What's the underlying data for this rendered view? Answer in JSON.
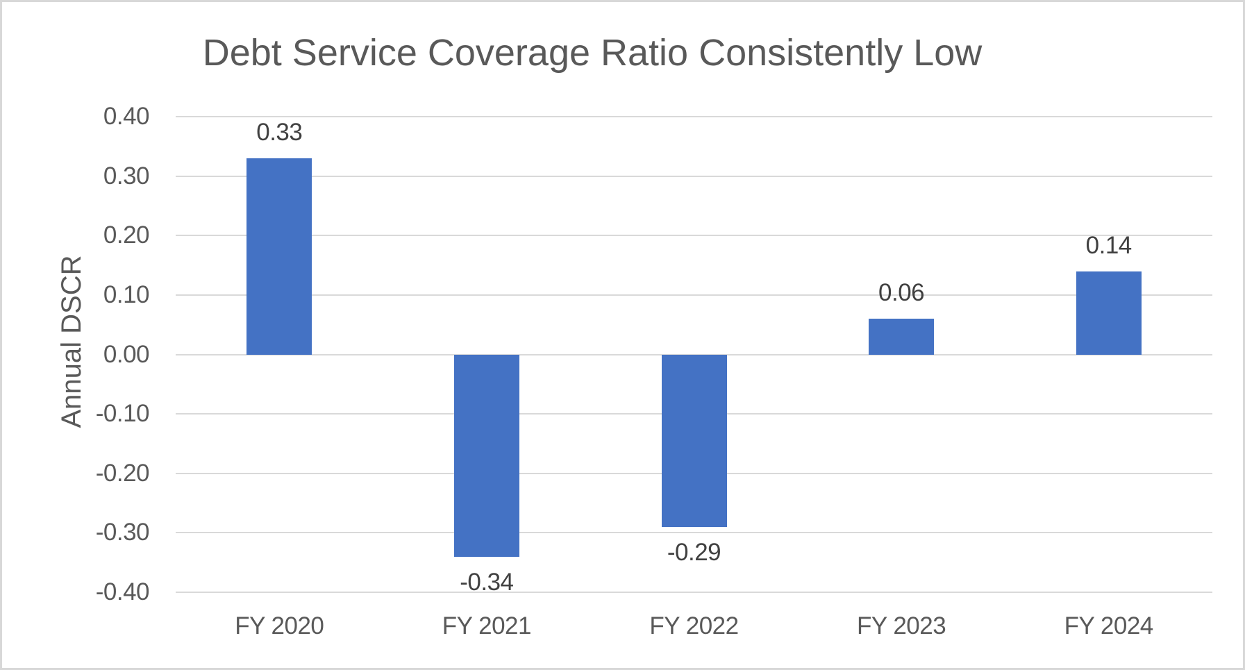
{
  "chart_data": {
    "type": "bar",
    "title": "Debt Service Coverage Ratio Consistently Low",
    "xlabel": "",
    "ylabel": "Annual DSCR",
    "categories": [
      "FY 2020",
      "FY 2021",
      "FY 2022",
      "FY 2023",
      "FY 2024"
    ],
    "values": [
      0.33,
      -0.34,
      -0.29,
      0.06,
      0.14
    ],
    "data_labels": [
      "0.33",
      "-0.34",
      "-0.29",
      "0.06",
      "0.14"
    ],
    "y_ticks": [
      "0.40",
      "0.30",
      "0.20",
      "0.10",
      "0.00",
      "-0.10",
      "-0.20",
      "-0.30",
      "-0.40"
    ],
    "y_tick_values": [
      0.4,
      0.3,
      0.2,
      0.1,
      0.0,
      -0.1,
      -0.2,
      -0.3,
      -0.4
    ],
    "ylim": [
      -0.4,
      0.4
    ],
    "grid": true,
    "legend": false,
    "colors": {
      "bar": "#4472C4",
      "gridline": "#D9D9D9",
      "title": "#595959",
      "axis_labels": "#595959",
      "data_labels": "#404040",
      "border": "#D8D8D8"
    }
  }
}
